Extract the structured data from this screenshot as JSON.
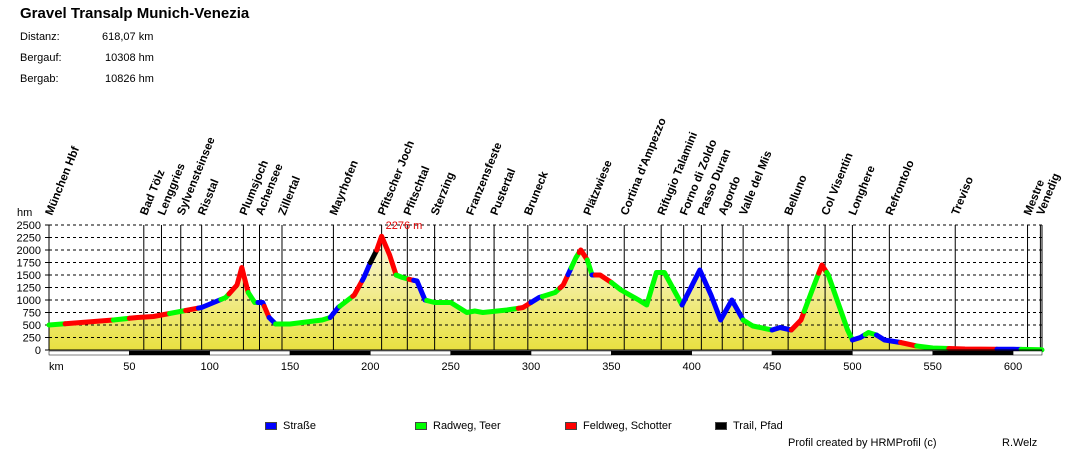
{
  "title": "Gravel Transalp Munich-Venezia",
  "stats": [
    {
      "label": "Distanz:",
      "value": "618,07 km"
    },
    {
      "label": "Bergauf:",
      "value": "10308 hm"
    },
    {
      "label": "Bergab:",
      "value": "10826 hm"
    }
  ],
  "legend": [
    {
      "label": "Straße",
      "color": "#0000ff"
    },
    {
      "label": "Radweg, Teer",
      "color": "#00ff00"
    },
    {
      "label": "Feldweg, Schotter",
      "color": "#ff0000"
    },
    {
      "label": "Trail, Pfad",
      "color": "#000000"
    }
  ],
  "footer": {
    "credit": "Profil created by HRMProfil (c)",
    "author": "R.Welz"
  },
  "chart_data": {
    "type": "area",
    "title": "Gravel Transalp Munich-Venezia",
    "xlabel": "km",
    "ylabel": "hm",
    "xlim": [
      0,
      618
    ],
    "ylim": [
      0,
      2500
    ],
    "xticks": [
      50,
      100,
      150,
      200,
      250,
      300,
      350,
      400,
      450,
      500,
      550,
      600
    ],
    "yticks": [
      0,
      250,
      500,
      750,
      1000,
      1250,
      1500,
      1750,
      2000,
      2250,
      2500
    ],
    "grid": true,
    "max_annotation": {
      "km": 207,
      "value": 2276,
      "label": "2276 m"
    },
    "profile": [
      [
        0,
        500
      ],
      [
        20,
        550
      ],
      [
        40,
        600
      ],
      [
        55,
        650
      ],
      [
        65,
        670
      ],
      [
        80,
        760
      ],
      [
        95,
        850
      ],
      [
        110,
        1050
      ],
      [
        117,
        1300
      ],
      [
        120,
        1650
      ],
      [
        124,
        1150
      ],
      [
        128,
        950
      ],
      [
        133,
        950
      ],
      [
        137,
        650
      ],
      [
        141,
        520
      ],
      [
        150,
        520
      ],
      [
        170,
        600
      ],
      [
        175,
        650
      ],
      [
        180,
        850
      ],
      [
        190,
        1100
      ],
      [
        196,
        1450
      ],
      [
        200,
        1750
      ],
      [
        204,
        2000
      ],
      [
        207,
        2276
      ],
      [
        212,
        1900
      ],
      [
        216,
        1500
      ],
      [
        220,
        1450
      ],
      [
        226,
        1400
      ],
      [
        229,
        1380
      ],
      [
        234,
        1000
      ],
      [
        240,
        950
      ],
      [
        250,
        950
      ],
      [
        260,
        750
      ],
      [
        265,
        780
      ],
      [
        270,
        750
      ],
      [
        285,
        800
      ],
      [
        295,
        850
      ],
      [
        300,
        950
      ],
      [
        305,
        1050
      ],
      [
        315,
        1150
      ],
      [
        320,
        1300
      ],
      [
        328,
        1850
      ],
      [
        331,
        2000
      ],
      [
        335,
        1800
      ],
      [
        338,
        1500
      ],
      [
        343,
        1500
      ],
      [
        350,
        1350
      ],
      [
        356,
        1200
      ],
      [
        367,
        1000
      ],
      [
        372,
        900
      ],
      [
        378,
        1550
      ],
      [
        383,
        1550
      ],
      [
        394,
        900
      ],
      [
        405,
        1600
      ],
      [
        412,
        1100
      ],
      [
        418,
        600
      ],
      [
        425,
        1000
      ],
      [
        432,
        600
      ],
      [
        438,
        480
      ],
      [
        450,
        400
      ],
      [
        455,
        450
      ],
      [
        462,
        400
      ],
      [
        468,
        600
      ],
      [
        475,
        1200
      ],
      [
        481,
        1700
      ],
      [
        485,
        1500
      ],
      [
        497,
        400
      ],
      [
        500,
        200
      ],
      [
        505,
        250
      ],
      [
        510,
        350
      ],
      [
        515,
        300
      ],
      [
        520,
        200
      ],
      [
        530,
        150
      ],
      [
        540,
        80
      ],
      [
        550,
        40
      ],
      [
        570,
        20
      ],
      [
        600,
        15
      ],
      [
        618,
        5
      ]
    ],
    "surface_segments": [
      {
        "from": 0,
        "to": 10,
        "type": "green"
      },
      {
        "from": 10,
        "to": 40,
        "type": "red"
      },
      {
        "from": 40,
        "to": 50,
        "type": "green"
      },
      {
        "from": 50,
        "to": 75,
        "type": "red"
      },
      {
        "from": 75,
        "to": 85,
        "type": "green"
      },
      {
        "from": 85,
        "to": 93,
        "type": "red"
      },
      {
        "from": 93,
        "to": 107,
        "type": "blue"
      },
      {
        "from": 107,
        "to": 112,
        "type": "green"
      },
      {
        "from": 112,
        "to": 124,
        "type": "red"
      },
      {
        "from": 124,
        "to": 130,
        "type": "green"
      },
      {
        "from": 130,
        "to": 134,
        "type": "blue"
      },
      {
        "from": 134,
        "to": 137,
        "type": "red"
      },
      {
        "from": 137,
        "to": 141,
        "type": "blue"
      },
      {
        "from": 141,
        "to": 175,
        "type": "green"
      },
      {
        "from": 175,
        "to": 181,
        "type": "blue"
      },
      {
        "from": 181,
        "to": 189,
        "type": "green"
      },
      {
        "from": 189,
        "to": 195,
        "type": "red"
      },
      {
        "from": 195,
        "to": 200,
        "type": "blue"
      },
      {
        "from": 200,
        "to": 204,
        "type": "black"
      },
      {
        "from": 204,
        "to": 216,
        "type": "red"
      },
      {
        "from": 216,
        "to": 224,
        "type": "green"
      },
      {
        "from": 224,
        "to": 227,
        "type": "red"
      },
      {
        "from": 227,
        "to": 235,
        "type": "blue"
      },
      {
        "from": 235,
        "to": 292,
        "type": "green"
      },
      {
        "from": 292,
        "to": 300,
        "type": "red"
      },
      {
        "from": 300,
        "to": 307,
        "type": "blue"
      },
      {
        "from": 307,
        "to": 318,
        "type": "green"
      },
      {
        "from": 318,
        "to": 323,
        "type": "red"
      },
      {
        "from": 323,
        "to": 325,
        "type": "blue"
      },
      {
        "from": 325,
        "to": 330,
        "type": "green"
      },
      {
        "from": 330,
        "to": 335,
        "type": "red"
      },
      {
        "from": 335,
        "to": 338,
        "type": "green"
      },
      {
        "from": 338,
        "to": 340,
        "type": "blue"
      },
      {
        "from": 340,
        "to": 350,
        "type": "red"
      },
      {
        "from": 350,
        "to": 394,
        "type": "green"
      },
      {
        "from": 394,
        "to": 432,
        "type": "blue"
      },
      {
        "from": 432,
        "to": 450,
        "type": "green"
      },
      {
        "from": 450,
        "to": 462,
        "type": "blue"
      },
      {
        "from": 462,
        "to": 470,
        "type": "red"
      },
      {
        "from": 470,
        "to": 479,
        "type": "green"
      },
      {
        "from": 479,
        "to": 484,
        "type": "red"
      },
      {
        "from": 484,
        "to": 500,
        "type": "green"
      },
      {
        "from": 500,
        "to": 508,
        "type": "blue"
      },
      {
        "from": 508,
        "to": 515,
        "type": "green"
      },
      {
        "from": 515,
        "to": 530,
        "type": "blue"
      },
      {
        "from": 530,
        "to": 540,
        "type": "red"
      },
      {
        "from": 540,
        "to": 560,
        "type": "green"
      },
      {
        "from": 560,
        "to": 590,
        "type": "red"
      },
      {
        "from": 590,
        "to": 605,
        "type": "blue"
      },
      {
        "from": 605,
        "to": 618,
        "type": "green"
      }
    ],
    "waypoints": [
      {
        "km": 0,
        "name": "München Hbf"
      },
      {
        "km": 59,
        "name": "Bad Tölz"
      },
      {
        "km": 70,
        "name": "Lenggries"
      },
      {
        "km": 82,
        "name": "Sylvensteinsee"
      },
      {
        "km": 95,
        "name": "Risstal"
      },
      {
        "km": 121,
        "name": "Plumsjoch"
      },
      {
        "km": 131,
        "name": "Achensee"
      },
      {
        "km": 145,
        "name": "Zillertal"
      },
      {
        "km": 177,
        "name": "Mayrhofen"
      },
      {
        "km": 207,
        "name": "Pfitscher Joch"
      },
      {
        "km": 223,
        "name": "Pfitschtal"
      },
      {
        "km": 240,
        "name": "Sterzing"
      },
      {
        "km": 262,
        "name": "Franzensfeste"
      },
      {
        "km": 277,
        "name": "Pustertal"
      },
      {
        "km": 298,
        "name": "Bruneck"
      },
      {
        "km": 335,
        "name": "Plätzwiese"
      },
      {
        "km": 358,
        "name": "Cortina d'Ampezzo"
      },
      {
        "km": 381,
        "name": "Rifugio Talamini"
      },
      {
        "km": 395,
        "name": "Forno di Zoldo"
      },
      {
        "km": 406,
        "name": "Passo Duran"
      },
      {
        "km": 419,
        "name": "Agordo"
      },
      {
        "km": 432,
        "name": "Valle del Mis"
      },
      {
        "km": 460,
        "name": "Belluno"
      },
      {
        "km": 483,
        "name": "Col Visentin"
      },
      {
        "km": 500,
        "name": "Longhere"
      },
      {
        "km": 523,
        "name": "Refrontolo"
      },
      {
        "km": 564,
        "name": "Treviso"
      },
      {
        "km": 609,
        "name": "Mestre"
      },
      {
        "km": 617,
        "name": "Venedig"
      }
    ]
  }
}
